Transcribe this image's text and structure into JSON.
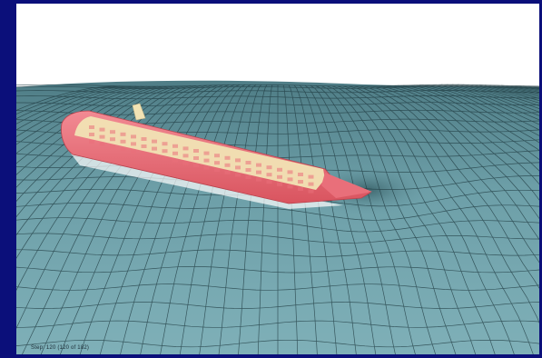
{
  "simulation": {
    "status_text": "Step: 120 (120 of 182)"
  },
  "colors": {
    "frame": "#0b0f7a",
    "sky": "#ffffff",
    "water": "#6d9fa8",
    "water_dark": "#3f6a72",
    "mesh_line": "#1f3a40",
    "hull": "#e96f7a",
    "deck": "#f1e3b4"
  },
  "icons": {
    "ship": "ship-model",
    "mesh": "wave-mesh"
  }
}
